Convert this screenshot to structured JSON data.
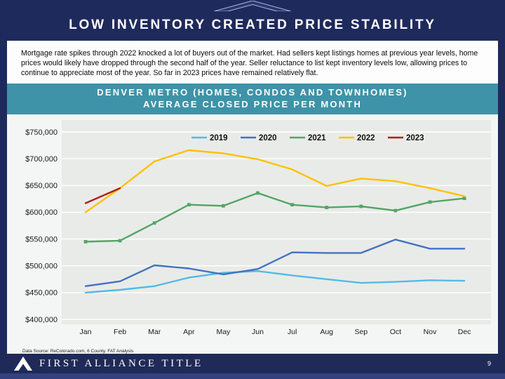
{
  "header": {
    "title": "LOW INVENTORY CREATED PRICE STABILITY"
  },
  "intro": {
    "text": "Mortgage rate spikes through 2022 knocked a lot of buyers out of the market.  Had sellers kept listings homes at previous year levels, home prices would likely have dropped through the second half of the year.  Seller reluctance to list kept inventory levels low, allowing prices to continue to appreciate most of the year.  So far in 2023 prices have remained relatively flat."
  },
  "banner": {
    "line1": "DENVER METRO (HOMES, CONDOS AND TOWNHOMES)",
    "line2": "AVERAGE CLOSED PRICE PER MONTH"
  },
  "chart_data": {
    "type": "line",
    "title": "Denver Metro Average Closed Price Per Month",
    "x": [
      "Jan",
      "Feb",
      "Mar",
      "Apr",
      "May",
      "Jun",
      "Jul",
      "Aug",
      "Sep",
      "Oct",
      "Nov",
      "Dec"
    ],
    "ylim": [
      400000,
      750000
    ],
    "ytick_step": 50000,
    "grid": true,
    "legend_position": "top-center",
    "series": [
      {
        "name": "2019",
        "color": "#56b9e4",
        "markers": false,
        "values": [
          450000,
          455000,
          462000,
          478000,
          487000,
          490000,
          482000,
          475000,
          468000,
          470000,
          473000,
          472000
        ]
      },
      {
        "name": "2020",
        "color": "#4472c4",
        "markers": false,
        "values": [
          462000,
          471000,
          501000,
          495000,
          484000,
          494000,
          525000,
          524000,
          524000,
          549000,
          532000,
          532000
        ]
      },
      {
        "name": "2021",
        "color": "#53a567",
        "markers": true,
        "values": [
          545000,
          547000,
          580000,
          614000,
          612000,
          636000,
          614000,
          609000,
          611000,
          603000,
          619000,
          626000
        ]
      },
      {
        "name": "2022",
        "color": "#ffc000",
        "markers": false,
        "values": [
          600000,
          645000,
          695000,
          716000,
          710000,
          699000,
          680000,
          649000,
          663000,
          658000,
          645000,
          630000
        ]
      },
      {
        "name": "2023",
        "color": "#ad201a",
        "markers": false,
        "values": [
          617000,
          645000,
          null,
          null,
          null,
          null,
          null,
          null,
          null,
          null,
          null,
          null
        ]
      }
    ]
  },
  "source_note": "Data Source: ReColorado.com, 6 County.  FAT Analysis",
  "footer": {
    "brand": "FIRST ALLIANCE TITLE",
    "page_number": "9"
  },
  "colors": {
    "navy": "#1f2a5c",
    "teal": "#3e93a8",
    "footer_strip": "#33417e",
    "plot_bg": "#e9ebe8"
  }
}
